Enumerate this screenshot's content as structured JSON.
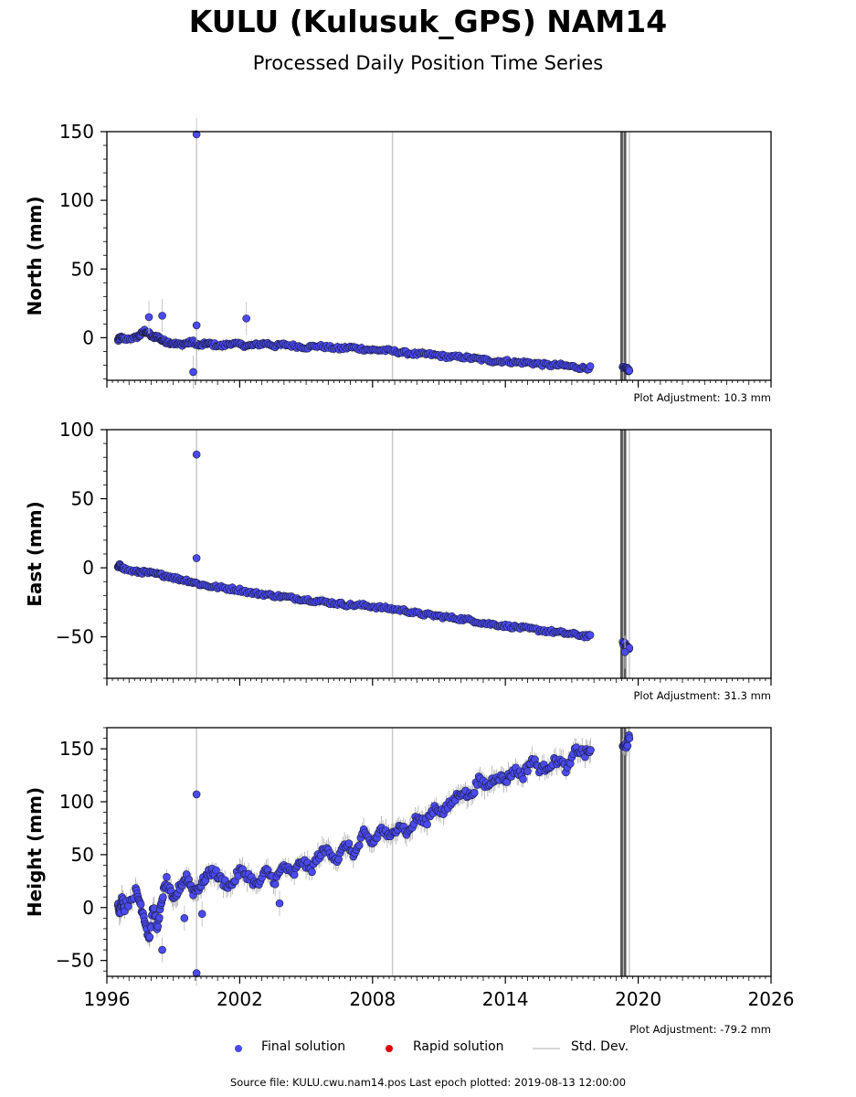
{
  "title": "KULU (Kulusuk_GPS) NAM14",
  "subtitle": "Processed Daily Position Time Series",
  "legend": {
    "final": "Final solution",
    "rapid": "Rapid solution",
    "stddev": "Std. Dev."
  },
  "footer": "Source file: KULU.cwu.nam14.pos  Last epoch plotted: 2019-08-13 12:00:00",
  "colors": {
    "final": "#4a4af0",
    "rapid": "#e00000",
    "stddev": "#c8c8c8",
    "event_line": "#5a5a5a"
  },
  "chart_data": [
    {
      "type": "scatter",
      "ylabel": "North (mm)",
      "xlim": [
        1996,
        2026
      ],
      "ylim": [
        -31,
        150
      ],
      "yticks": [
        0,
        50,
        100,
        150
      ],
      "xticks": [
        1996,
        2002,
        2008,
        2014,
        2020,
        2026
      ],
      "show_xtick_labels": false,
      "adjustment": "Plot Adjustment: 10.3 mm",
      "series": [
        {
          "points": [
            [
              1996.5,
              -2
            ],
            [
              1996.6,
              0
            ],
            [
              1996.8,
              -1
            ],
            [
              1997.3,
              0
            ],
            [
              1997.5,
              2
            ],
            [
              1997.7,
              5
            ],
            [
              1997.9,
              3
            ],
            [
              1998.1,
              0
            ],
            [
              1998.3,
              1
            ],
            [
              1998.5,
              -2
            ],
            [
              1998.7,
              -3
            ],
            [
              1999.0,
              -4
            ],
            [
              1999.3,
              -5
            ],
            [
              1999.6,
              -4
            ],
            [
              1999.9,
              -3
            ],
            [
              2000.2,
              -6
            ],
            [
              2000.5,
              -4
            ],
            [
              2000.8,
              -5
            ],
            [
              2001.2,
              -6
            ],
            [
              2001.6,
              -4
            ],
            [
              2002.0,
              -5
            ],
            [
              2002.4,
              -6
            ],
            [
              2002.8,
              -5
            ],
            [
              2003.2,
              -4
            ],
            [
              2003.6,
              -6
            ],
            [
              2004.0,
              -5
            ],
            [
              2004.5,
              -6
            ],
            [
              2005.0,
              -7
            ],
            [
              2005.5,
              -6
            ],
            [
              2006.0,
              -7
            ],
            [
              2006.5,
              -8
            ],
            [
              2007.0,
              -7
            ],
            [
              2007.5,
              -8
            ],
            [
              2008.0,
              -9
            ],
            [
              2008.5,
              -9
            ],
            [
              2009.0,
              -10
            ],
            [
              2009.5,
              -11
            ],
            [
              2010.0,
              -12
            ],
            [
              2010.5,
              -12
            ],
            [
              2011.0,
              -13
            ],
            [
              2011.5,
              -14
            ],
            [
              2012.0,
              -14
            ],
            [
              2012.5,
              -15
            ],
            [
              2013.0,
              -16
            ],
            [
              2013.5,
              -17
            ],
            [
              2014.0,
              -17
            ],
            [
              2014.5,
              -18
            ],
            [
              2015.0,
              -18
            ],
            [
              2015.5,
              -19
            ],
            [
              2016.0,
              -20
            ],
            [
              2016.5,
              -20
            ],
            [
              2017.0,
              -21
            ],
            [
              2017.5,
              -22
            ],
            [
              2017.9,
              -22
            ],
            [
              2019.3,
              -22
            ],
            [
              2019.5,
              -23
            ],
            [
              2019.6,
              -24
            ]
          ],
          "outliers": [
            [
              2000.05,
              148
            ],
            [
              2000.05,
              9
            ],
            [
              1999.9,
              -25
            ],
            [
              2002.3,
              14
            ],
            [
              1998.5,
              16
            ],
            [
              1997.9,
              15
            ]
          ]
        }
      ]
    },
    {
      "type": "scatter",
      "ylabel": "East (mm)",
      "xlim": [
        1996,
        2026
      ],
      "ylim": [
        -80,
        100
      ],
      "yticks": [
        -50,
        0,
        50,
        100
      ],
      "xticks": [
        1996,
        2002,
        2008,
        2014,
        2020,
        2026
      ],
      "show_xtick_labels": false,
      "adjustment": "Plot Adjustment: 31.3 mm",
      "series": [
        {
          "points": [
            [
              1996.5,
              0
            ],
            [
              1996.6,
              2
            ],
            [
              1996.8,
              -1
            ],
            [
              1997.3,
              -3
            ],
            [
              1997.6,
              -3
            ],
            [
              1998.0,
              -4
            ],
            [
              1998.4,
              -5
            ],
            [
              1998.8,
              -6
            ],
            [
              1999.2,
              -8
            ],
            [
              1999.6,
              -9
            ],
            [
              2000.0,
              -11
            ],
            [
              2000.5,
              -13
            ],
            [
              2001.0,
              -14
            ],
            [
              2001.5,
              -15
            ],
            [
              2002.0,
              -16
            ],
            [
              2002.5,
              -18
            ],
            [
              2003.0,
              -19
            ],
            [
              2003.5,
              -20
            ],
            [
              2004.0,
              -21
            ],
            [
              2004.5,
              -22
            ],
            [
              2005.0,
              -23
            ],
            [
              2005.5,
              -24
            ],
            [
              2006.0,
              -25
            ],
            [
              2006.5,
              -26
            ],
            [
              2007.0,
              -27
            ],
            [
              2007.5,
              -27
            ],
            [
              2008.0,
              -28
            ],
            [
              2008.5,
              -29
            ],
            [
              2009.0,
              -30
            ],
            [
              2009.5,
              -31
            ],
            [
              2010.0,
              -33
            ],
            [
              2010.5,
              -34
            ],
            [
              2011.0,
              -35
            ],
            [
              2011.5,
              -36
            ],
            [
              2012.0,
              -37
            ],
            [
              2012.5,
              -38
            ],
            [
              2013.0,
              -40
            ],
            [
              2013.5,
              -41
            ],
            [
              2014.0,
              -42
            ],
            [
              2014.5,
              -43
            ],
            [
              2015.0,
              -44
            ],
            [
              2015.5,
              -45
            ],
            [
              2016.0,
              -46
            ],
            [
              2016.5,
              -47
            ],
            [
              2017.0,
              -48
            ],
            [
              2017.5,
              -49
            ],
            [
              2017.9,
              -50
            ],
            [
              2019.3,
              -54
            ],
            [
              2019.5,
              -57
            ],
            [
              2019.6,
              -58
            ]
          ],
          "outliers": [
            [
              2000.05,
              82
            ],
            [
              2000.05,
              7
            ],
            [
              2019.4,
              -61
            ]
          ]
        }
      ]
    },
    {
      "type": "scatter",
      "ylabel": "Height (mm)",
      "xlim": [
        1996,
        2026
      ],
      "ylim": [
        -65,
        170
      ],
      "yticks": [
        -50,
        0,
        50,
        100,
        150
      ],
      "xticks": [
        1996,
        2002,
        2008,
        2014,
        2020,
        2026
      ],
      "show_xtick_labels": true,
      "adjustment": "Plot Adjustment: -79.2 mm",
      "series": [
        {
          "points": [
            [
              1996.5,
              5
            ],
            [
              1996.6,
              -5
            ],
            [
              1996.7,
              10
            ],
            [
              1996.8,
              0
            ],
            [
              1997.3,
              15
            ],
            [
              1997.5,
              5
            ],
            [
              1997.7,
              -10
            ],
            [
              1997.9,
              -30
            ],
            [
              1998.1,
              0
            ],
            [
              1998.3,
              -20
            ],
            [
              1998.5,
              10
            ],
            [
              1998.7,
              25
            ],
            [
              1999.0,
              5
            ],
            [
              1999.3,
              20
            ],
            [
              1999.6,
              30
            ],
            [
              1999.9,
              15
            ],
            [
              2000.2,
              20
            ],
            [
              2000.5,
              30
            ],
            [
              2000.8,
              35
            ],
            [
              2001.2,
              25
            ],
            [
              2001.6,
              20
            ],
            [
              2002.0,
              35
            ],
            [
              2002.4,
              30
            ],
            [
              2002.8,
              20
            ],
            [
              2003.2,
              35
            ],
            [
              2003.6,
              25
            ],
            [
              2004.0,
              40
            ],
            [
              2004.4,
              30
            ],
            [
              2004.8,
              45
            ],
            [
              2005.2,
              35
            ],
            [
              2005.6,
              50
            ],
            [
              2006.0,
              55
            ],
            [
              2006.4,
              45
            ],
            [
              2006.8,
              60
            ],
            [
              2007.2,
              50
            ],
            [
              2007.6,
              70
            ],
            [
              2008.0,
              60
            ],
            [
              2008.4,
              75
            ],
            [
              2008.8,
              65
            ],
            [
              2009.2,
              80
            ],
            [
              2009.6,
              70
            ],
            [
              2010.0,
              85
            ],
            [
              2010.4,
              80
            ],
            [
              2010.8,
              95
            ],
            [
              2011.2,
              90
            ],
            [
              2011.6,
              100
            ],
            [
              2012.0,
              110
            ],
            [
              2012.4,
              105
            ],
            [
              2012.8,
              120
            ],
            [
              2013.2,
              115
            ],
            [
              2013.6,
              125
            ],
            [
              2014.0,
              120
            ],
            [
              2014.4,
              130
            ],
            [
              2014.8,
              125
            ],
            [
              2015.2,
              140
            ],
            [
              2015.6,
              130
            ],
            [
              2016.0,
              135
            ],
            [
              2016.4,
              140
            ],
            [
              2016.8,
              130
            ],
            [
              2017.2,
              150
            ],
            [
              2017.6,
              145
            ],
            [
              2017.9,
              150
            ],
            [
              2019.3,
              150
            ],
            [
              2019.5,
              155
            ],
            [
              2019.6,
              160
            ]
          ],
          "outliers": [
            [
              2000.05,
              107
            ],
            [
              2000.05,
              -62
            ],
            [
              2000.3,
              -6
            ],
            [
              2003.8,
              4
            ],
            [
              1998.5,
              -40
            ],
            [
              1999.5,
              -10
            ]
          ]
        }
      ]
    }
  ]
}
